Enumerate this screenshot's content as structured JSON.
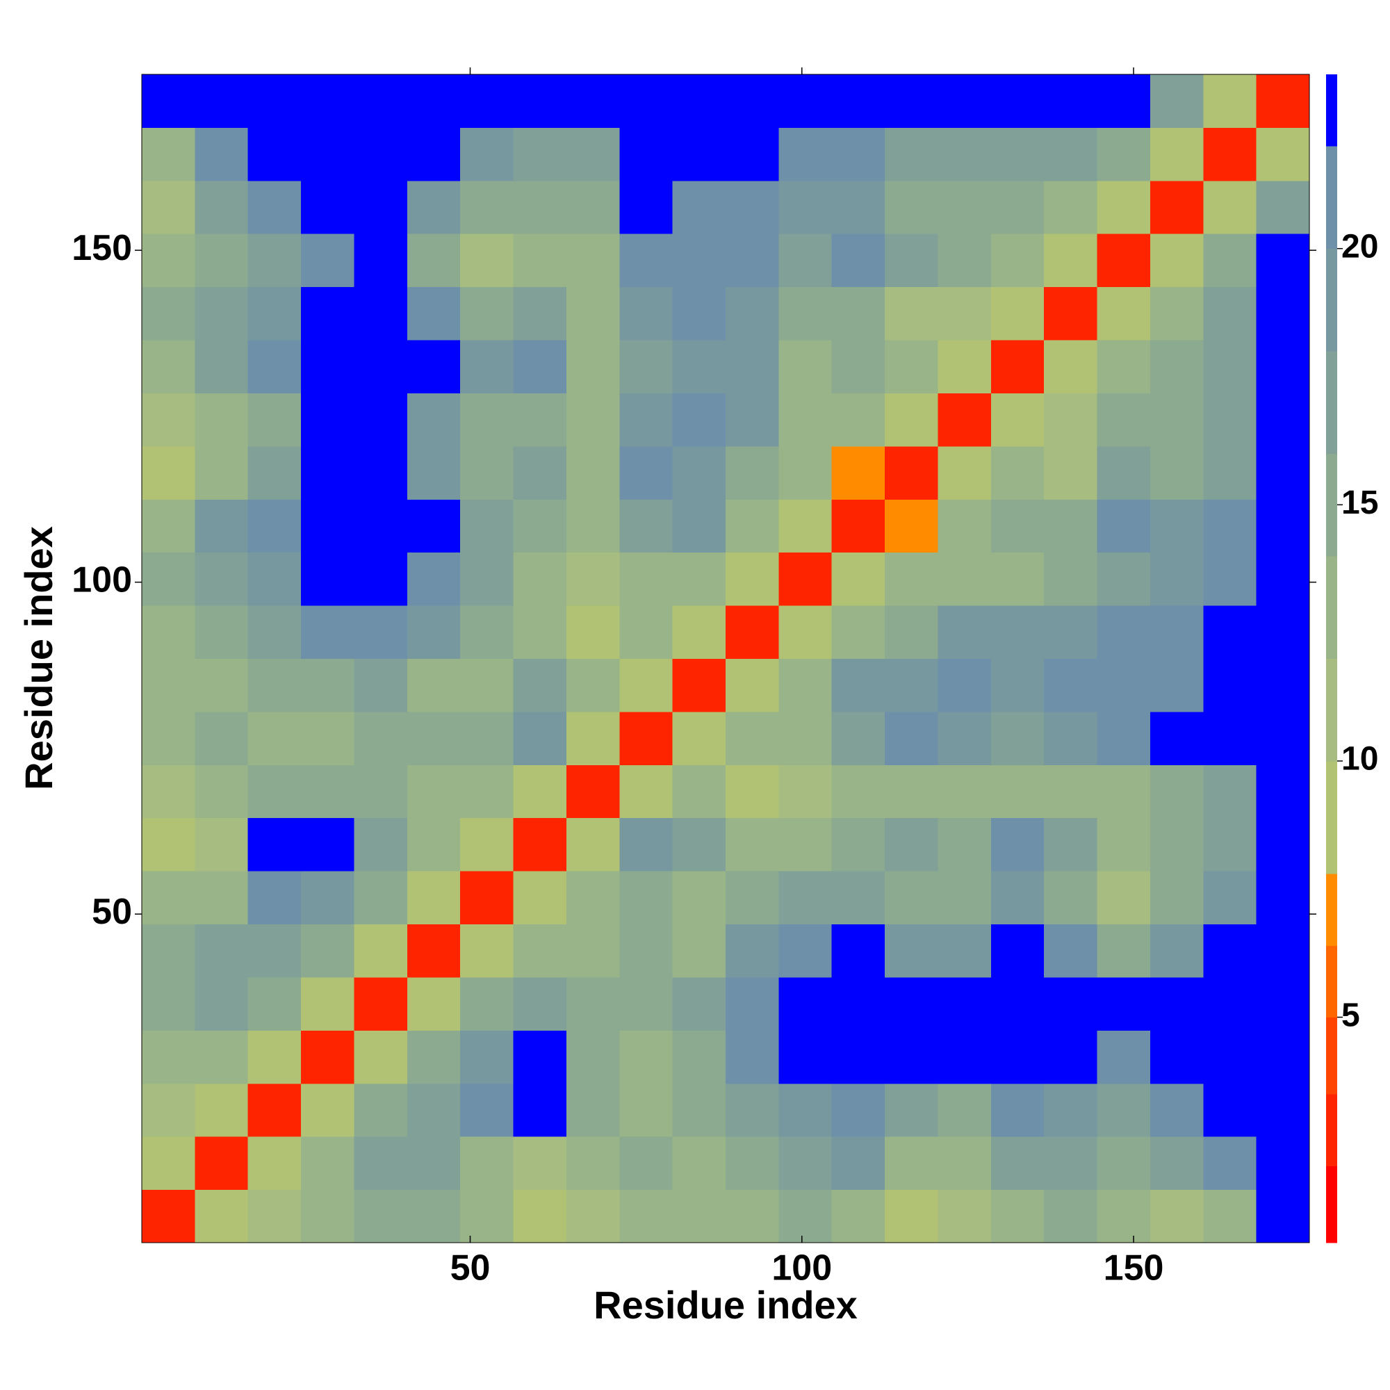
{
  "chart_data": {
    "type": "heatmap",
    "xlabel": "Residue index",
    "ylabel": "Residue index",
    "xbins": [
      0.5,
      8.5,
      16.5,
      24.5,
      32.5,
      40.5,
      48.5,
      56.5,
      64.5,
      72.5,
      80.5,
      88.5,
      96.5,
      104.5,
      112.5,
      120.5,
      128.5,
      136.5,
      144.5,
      152.5,
      160.5,
      168.5,
      176.5
    ],
    "ybins": [
      0.5,
      8.5,
      16.5,
      24.5,
      32.5,
      40.5,
      48.5,
      56.5,
      64.5,
      72.5,
      80.5,
      88.5,
      96.5,
      104.5,
      112.5,
      120.5,
      128.5,
      136.5,
      144.5,
      152.5,
      160.5,
      168.5,
      176.5
    ],
    "xlim": [
      0.5,
      176.5
    ],
    "ylim": [
      0.5,
      176.5
    ],
    "xticks": [
      50,
      100,
      150
    ],
    "yticks": [
      50,
      100,
      150
    ],
    "z": [
      [
        3,
        8,
        12,
        14,
        16,
        15,
        13,
        9,
        11,
        14,
        13,
        14,
        15,
        14,
        10,
        12,
        14,
        15,
        13,
        12,
        14,
        24
      ],
      [
        8,
        3,
        8,
        14,
        18,
        17,
        14,
        12,
        13,
        15,
        14,
        16,
        18,
        19,
        13,
        14,
        18,
        17,
        15,
        17,
        21,
        24
      ],
      [
        12,
        8,
        3,
        9,
        16,
        17,
        21,
        23,
        15,
        13,
        16,
        18,
        20,
        21,
        17,
        16,
        22,
        20,
        17,
        21,
        24,
        24
      ],
      [
        14,
        14,
        9,
        3,
        8,
        15,
        20,
        23,
        16,
        14,
        16,
        21,
        23,
        24,
        23,
        24,
        24,
        24,
        22,
        24,
        24,
        24
      ],
      [
        16,
        18,
        16,
        8,
        3,
        9,
        16,
        18,
        15,
        16,
        17,
        22,
        24,
        24,
        24,
        24,
        24,
        24,
        23,
        24,
        24,
        24
      ],
      [
        15,
        17,
        17,
        15,
        9,
        3,
        8,
        13,
        14,
        15,
        14,
        20,
        22,
        23,
        19,
        20,
        23,
        22,
        16,
        20,
        24,
        24
      ],
      [
        13,
        14,
        21,
        20,
        16,
        8,
        3,
        8,
        14,
        15,
        13,
        15,
        17,
        18,
        16,
        15,
        19,
        16,
        11,
        15,
        19,
        24
      ],
      [
        9,
        12,
        23,
        23,
        18,
        13,
        8,
        3,
        9,
        20,
        18,
        14,
        13,
        16,
        17,
        15,
        21,
        17,
        14,
        15,
        17,
        24
      ],
      [
        11,
        13,
        15,
        16,
        15,
        14,
        14,
        9,
        3,
        8,
        13,
        10,
        12,
        14,
        14,
        13,
        14,
        13,
        14,
        15,
        17,
        24
      ],
      [
        14,
        15,
        13,
        14,
        16,
        15,
        15,
        20,
        8,
        3,
        8,
        13,
        14,
        17,
        22,
        19,
        17,
        20,
        22,
        23,
        24,
        24
      ],
      [
        13,
        14,
        16,
        16,
        17,
        14,
        13,
        18,
        13,
        8,
        3,
        8,
        14,
        19,
        20,
        21,
        20,
        21,
        22,
        22,
        24,
        24
      ],
      [
        14,
        16,
        18,
        21,
        22,
        20,
        15,
        14,
        10,
        13,
        8,
        3,
        8,
        13,
        16,
        19,
        19,
        20,
        21,
        22,
        23,
        24
      ],
      [
        15,
        18,
        20,
        23,
        24,
        22,
        17,
        13,
        12,
        14,
        14,
        8,
        3,
        8,
        13,
        14,
        13,
        15,
        18,
        19,
        21,
        24
      ],
      [
        14,
        19,
        21,
        24,
        24,
        23,
        18,
        16,
        14,
        17,
        19,
        13,
        8,
        3,
        7,
        13,
        15,
        16,
        21,
        20,
        22,
        24
      ],
      [
        10,
        13,
        17,
        23,
        24,
        19,
        16,
        17,
        14,
        22,
        20,
        16,
        13,
        7,
        3,
        8,
        13,
        11,
        17,
        16,
        17,
        24
      ],
      [
        12,
        14,
        16,
        24,
        24,
        20,
        15,
        15,
        13,
        19,
        21,
        19,
        14,
        13,
        8,
        3,
        8,
        12,
        15,
        16,
        18,
        24
      ],
      [
        14,
        18,
        22,
        24,
        24,
        23,
        19,
        21,
        14,
        17,
        20,
        19,
        13,
        15,
        13,
        8,
        3,
        8,
        13,
        15,
        18,
        24
      ],
      [
        15,
        17,
        20,
        24,
        24,
        22,
        16,
        17,
        13,
        20,
        21,
        20,
        15,
        16,
        11,
        12,
        8,
        3,
        8,
        14,
        17,
        24
      ],
      [
        13,
        15,
        17,
        22,
        23,
        16,
        11,
        14,
        14,
        22,
        22,
        21,
        18,
        21,
        17,
        15,
        13,
        8,
        3,
        8,
        15,
        23
      ],
      [
        12,
        17,
        21,
        24,
        24,
        20,
        15,
        15,
        15,
        23,
        22,
        22,
        19,
        20,
        16,
        16,
        15,
        14,
        8,
        3,
        8,
        18
      ],
      [
        14,
        21,
        24,
        24,
        24,
        24,
        19,
        17,
        17,
        24,
        24,
        23,
        21,
        22,
        17,
        18,
        18,
        17,
        15,
        8,
        3,
        9
      ],
      [
        24,
        24,
        24,
        24,
        24,
        24,
        24,
        24,
        24,
        24,
        24,
        24,
        24,
        24,
        24,
        24,
        24,
        24,
        23,
        18,
        9,
        3
      ]
    ],
    "colorbar": {
      "lim": [
        0.6,
        23.4
      ],
      "ticks": [
        5,
        10,
        15,
        20
      ],
      "edges": [
        0.6,
        2.1,
        3.5,
        5,
        6.4,
        7.8,
        10,
        12,
        14,
        16,
        18,
        20,
        22,
        23.4
      ],
      "colors": [
        "#ff0000",
        "#ff2400",
        "#ff4400",
        "#ff6600",
        "#ff8c00",
        "#b2c274",
        "#a6bc80",
        "#98b488",
        "#8caa90",
        "#80a098",
        "#7898a0",
        "#6e90a8",
        "#0000ff"
      ]
    }
  }
}
